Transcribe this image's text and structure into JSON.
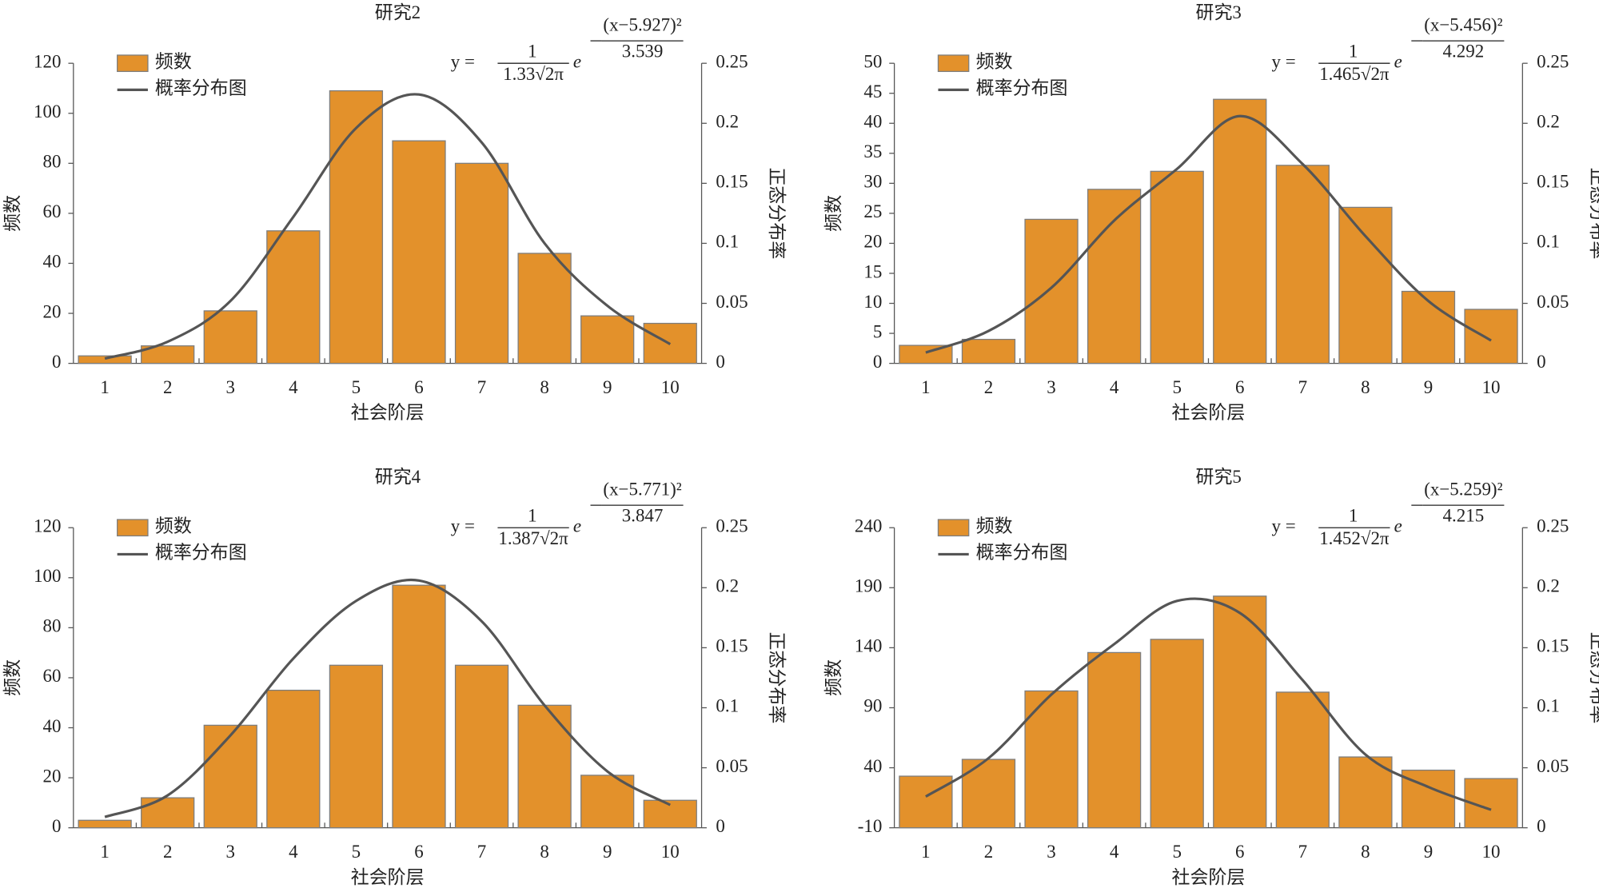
{
  "chart_data": [
    {
      "type": "bar",
      "title": "研究2",
      "xlabel": "社会阶层",
      "ylabel": "频数",
      "y2label": "正态分布率",
      "categories": [
        "1",
        "2",
        "3",
        "4",
        "5",
        "6",
        "7",
        "8",
        "9",
        "10"
      ],
      "series": [
        {
          "name": "频数",
          "type": "bar",
          "color": "#E3912B",
          "values": [
            3,
            7,
            21,
            53,
            109,
            89,
            80,
            44,
            19,
            16
          ]
        },
        {
          "name": "概率分布图",
          "type": "line",
          "axis": "y2",
          "color": "#555555",
          "values": [
            0.004,
            0.018,
            0.052,
            0.122,
            0.196,
            0.224,
            0.184,
            0.1,
            0.048,
            0.016
          ]
        }
      ],
      "ylim": [
        0,
        120
      ],
      "yticks": [
        0,
        20,
        40,
        60,
        80,
        100,
        120
      ],
      "y2lim": [
        0,
        0.25
      ],
      "y2ticks": [
        0,
        0.05,
        0.1,
        0.15,
        0.2,
        0.25
      ],
      "equation": {
        "lhs": "y =",
        "numerator": "1",
        "denominator": "1.33√2π",
        "base": "e",
        "exp_numerator": "(x−5.927)²",
        "exp_denominator": "3.539"
      }
    },
    {
      "type": "bar",
      "title": "研究3",
      "xlabel": "社会阶层",
      "ylabel": "频数",
      "y2label": "正态分布率",
      "categories": [
        "1",
        "2",
        "3",
        "4",
        "5",
        "6",
        "7",
        "8",
        "9",
        "10"
      ],
      "series": [
        {
          "name": "频数",
          "type": "bar",
          "color": "#E3912B",
          "values": [
            3,
            4,
            24,
            29,
            32,
            44,
            33,
            26,
            12,
            9
          ]
        },
        {
          "name": "概率分布图",
          "type": "line",
          "axis": "y2",
          "color": "#555555",
          "values": [
            0.009,
            0.027,
            0.063,
            0.119,
            0.162,
            0.206,
            0.166,
            0.106,
            0.052,
            0.019
          ]
        }
      ],
      "ylim": [
        0,
        50
      ],
      "yticks": [
        0,
        5,
        10,
        15,
        20,
        25,
        30,
        35,
        40,
        45,
        50
      ],
      "y2lim": [
        0,
        0.25
      ],
      "y2ticks": [
        0,
        0.05,
        0.1,
        0.15,
        0.2,
        0.25
      ],
      "equation": {
        "lhs": "y =",
        "numerator": "1",
        "denominator": "1.465√2π",
        "base": "e",
        "exp_numerator": "(x−5.456)²",
        "exp_denominator": "4.292"
      }
    },
    {
      "type": "bar",
      "title": "研究4",
      "xlabel": "社会阶层",
      "ylabel": "频数",
      "y2label": "正态分布率",
      "categories": [
        "1",
        "2",
        "3",
        "4",
        "5",
        "6",
        "7",
        "8",
        "9",
        "10"
      ],
      "series": [
        {
          "name": "频数",
          "type": "bar",
          "color": "#E3912B",
          "values": [
            3,
            12,
            41,
            55,
            65,
            97,
            65,
            49,
            21,
            11
          ]
        },
        {
          "name": "概率分布图",
          "type": "line",
          "axis": "y2",
          "color": "#555555",
          "values": [
            0.009,
            0.027,
            0.077,
            0.141,
            0.189,
            0.206,
            0.172,
            0.102,
            0.047,
            0.019
          ]
        }
      ],
      "ylim": [
        0,
        120
      ],
      "yticks": [
        0,
        20,
        40,
        60,
        80,
        100,
        120
      ],
      "y2lim": [
        0,
        0.25
      ],
      "y2ticks": [
        0,
        0.05,
        0.1,
        0.15,
        0.2,
        0.25
      ],
      "equation": {
        "lhs": "y =",
        "numerator": "1",
        "denominator": "1.387√2π",
        "base": "e",
        "exp_numerator": "(x−5.771)²",
        "exp_denominator": "3.847"
      }
    },
    {
      "type": "bar",
      "title": "研究5",
      "xlabel": "社会阶层",
      "ylabel": "频数",
      "y2label": "正态分布率",
      "categories": [
        "1",
        "2",
        "3",
        "4",
        "5",
        "6",
        "7",
        "8",
        "9",
        "10"
      ],
      "series": [
        {
          "name": "频数",
          "type": "bar",
          "color": "#E3912B",
          "values": [
            33,
            47,
            104,
            136,
            147,
            183,
            103,
            49,
            38,
            31
          ]
        },
        {
          "name": "概率分布图",
          "type": "line",
          "axis": "y2",
          "color": "#555555",
          "values": [
            0.026,
            0.058,
            0.111,
            0.153,
            0.189,
            0.179,
            0.123,
            0.061,
            0.034,
            0.015
          ]
        }
      ],
      "ylim": [
        -10,
        240
      ],
      "yticks": [
        -10,
        40,
        90,
        140,
        190,
        240
      ],
      "y2lim": [
        0,
        0.25
      ],
      "y2ticks": [
        0,
        0.05,
        0.1,
        0.15,
        0.2,
        0.25
      ],
      "equation": {
        "lhs": "y =",
        "numerator": "1",
        "denominator": "1.452√2π",
        "base": "e",
        "exp_numerator": "(x−5.259)²",
        "exp_denominator": "4.215"
      }
    }
  ]
}
